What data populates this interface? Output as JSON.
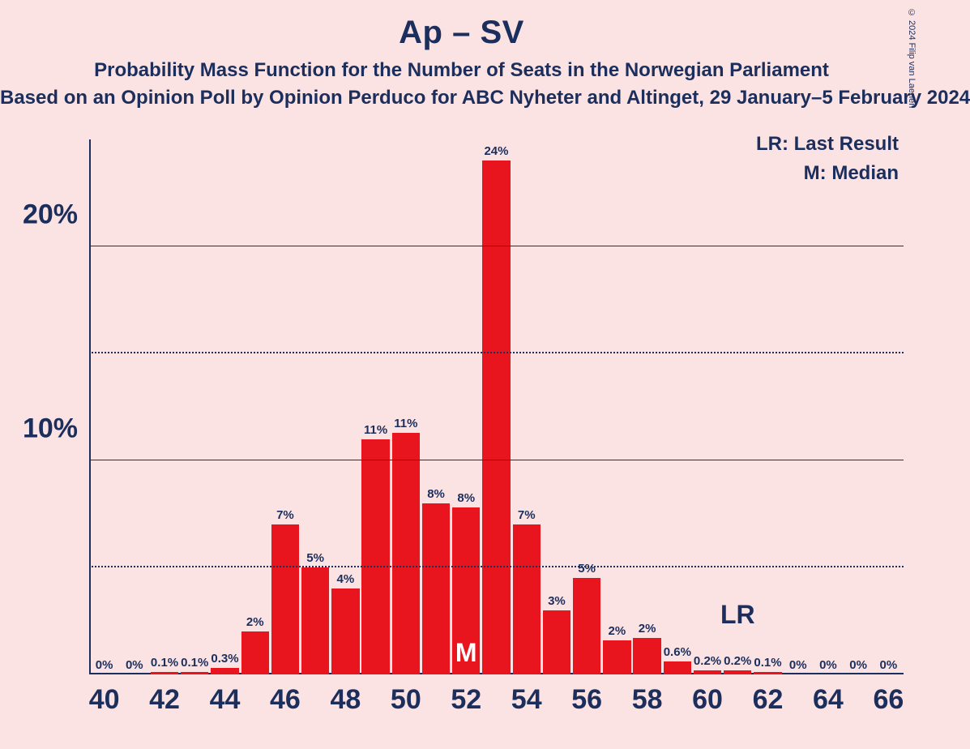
{
  "copyright": "© 2024 Filip van Laenen",
  "title": "Ap – SV",
  "subtitle": "Probability Mass Function for the Number of Seats in the Norwegian Parliament",
  "source_line": "Based on an Opinion Poll by Opinion Perduco for ABC Nyheter and Altinget, 29 January–5 February 2024",
  "legend": {
    "lr": "LR: Last Result",
    "m": "M: Median"
  },
  "chart": {
    "type": "bar",
    "background_color": "#fbe3e4",
    "bar_color": "#e8151f",
    "axis_color": "#1b2e5c",
    "text_color": "#1b2e5c",
    "m_label_color": "#ffffff",
    "ylim": [
      0,
      25
    ],
    "y_major_ticks": [
      10,
      20
    ],
    "y_minor_ticks": [
      5,
      15
    ],
    "x_range": [
      40,
      66
    ],
    "x_tick_step": 2,
    "bar_width_ratio": 0.92,
    "median_seat": 52,
    "lr_seat": 61,
    "bars": [
      {
        "x": 40,
        "v": 0,
        "lbl": "0%"
      },
      {
        "x": 41,
        "v": 0,
        "lbl": "0%"
      },
      {
        "x": 42,
        "v": 0.1,
        "lbl": "0.1%"
      },
      {
        "x": 43,
        "v": 0.1,
        "lbl": "0.1%"
      },
      {
        "x": 44,
        "v": 0.3,
        "lbl": "0.3%"
      },
      {
        "x": 45,
        "v": 2,
        "lbl": "2%"
      },
      {
        "x": 46,
        "v": 7,
        "lbl": "7%"
      },
      {
        "x": 47,
        "v": 5,
        "lbl": "5%"
      },
      {
        "x": 48,
        "v": 4,
        "lbl": "4%"
      },
      {
        "x": 49,
        "v": 11,
        "lbl": "11%"
      },
      {
        "x": 50,
        "v": 11.3,
        "lbl": "11%"
      },
      {
        "x": 51,
        "v": 8,
        "lbl": "8%"
      },
      {
        "x": 52,
        "v": 7.8,
        "lbl": "8%"
      },
      {
        "x": 53,
        "v": 24,
        "lbl": "24%"
      },
      {
        "x": 54,
        "v": 7,
        "lbl": "7%"
      },
      {
        "x": 55,
        "v": 3,
        "lbl": "3%"
      },
      {
        "x": 56,
        "v": 4.5,
        "lbl": "5%"
      },
      {
        "x": 57,
        "v": 1.6,
        "lbl": "2%"
      },
      {
        "x": 58,
        "v": 1.7,
        "lbl": "2%"
      },
      {
        "x": 59,
        "v": 0.6,
        "lbl": "0.6%"
      },
      {
        "x": 60,
        "v": 0.2,
        "lbl": "0.2%"
      },
      {
        "x": 61,
        "v": 0.2,
        "lbl": "0.2%"
      },
      {
        "x": 62,
        "v": 0.1,
        "lbl": "0.1%"
      },
      {
        "x": 63,
        "v": 0,
        "lbl": "0%"
      },
      {
        "x": 64,
        "v": 0,
        "lbl": "0%"
      },
      {
        "x": 65,
        "v": 0,
        "lbl": "0%"
      },
      {
        "x": 66,
        "v": 0,
        "lbl": "0%"
      }
    ],
    "title_fontsize": 40,
    "subtitle_fontsize": 24,
    "axis_label_fontsize": 34,
    "bar_label_fontsize": 15
  },
  "marker_text": {
    "m": "M",
    "lr": "LR"
  }
}
